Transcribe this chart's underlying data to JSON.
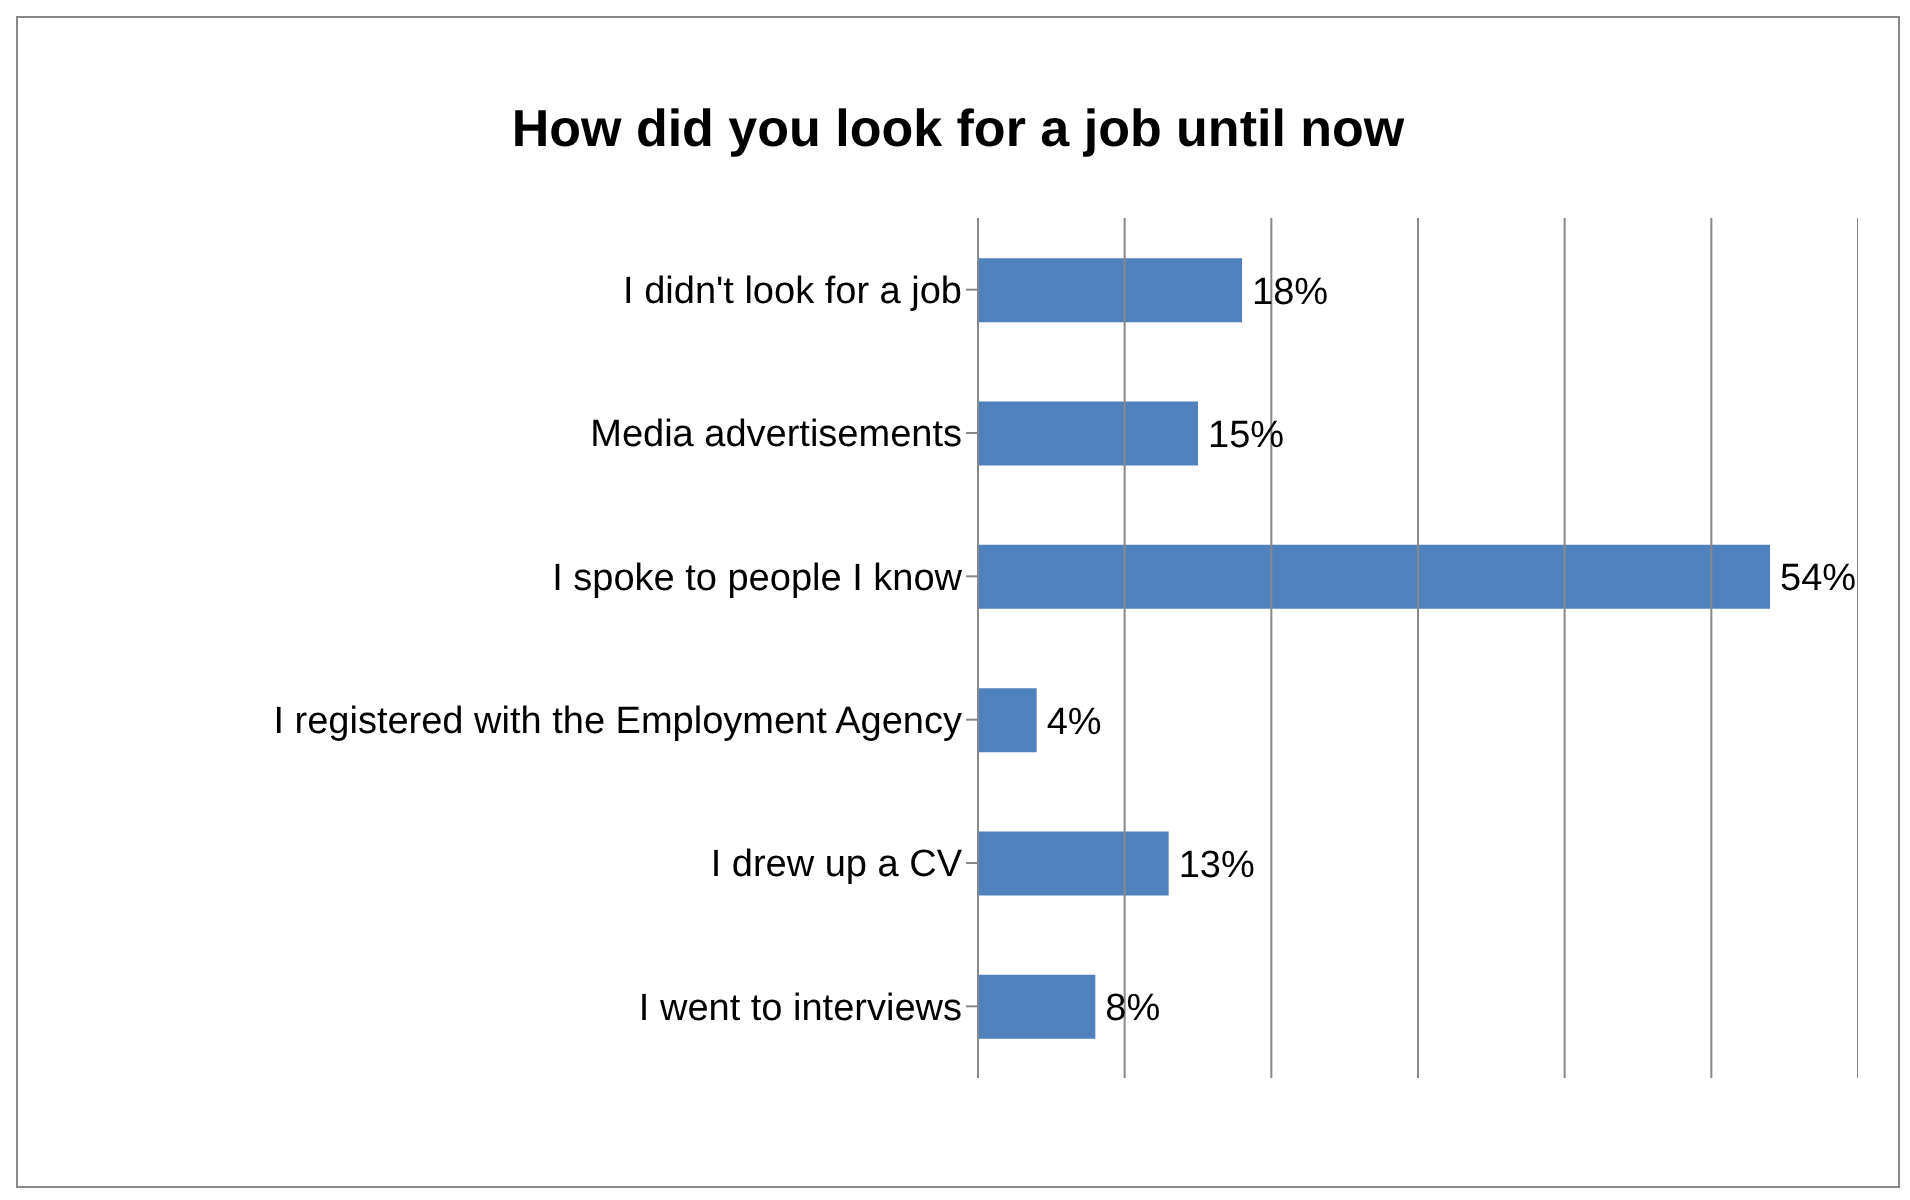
{
  "chart_data": {
    "type": "bar",
    "orientation": "horizontal",
    "title": "How did you look for a job until now",
    "categories": [
      "I didn't look for a job",
      "Media advertisements",
      "I spoke to people I know",
      "I registered with the Employment Agency",
      "I drew up a CV",
      "I went to interviews"
    ],
    "values": [
      18,
      15,
      54,
      4,
      13,
      8
    ],
    "value_labels": [
      "18%",
      "15%",
      "54%",
      "4%",
      "13%",
      "8%"
    ],
    "color": "#4f81bd",
    "xlim": [
      0,
      60
    ],
    "xticks": [
      {
        "value": 0,
        "label": null
      },
      {
        "value": 10,
        "label": null
      },
      {
        "value": 20,
        "label": null
      },
      {
        "value": 30,
        "label": null
      },
      {
        "value": 40,
        "label": null
      },
      {
        "value": 50,
        "label": null
      },
      {
        "value": 60,
        "label": null
      }
    ],
    "tick_labels": "y",
    "grid": "x"
  }
}
